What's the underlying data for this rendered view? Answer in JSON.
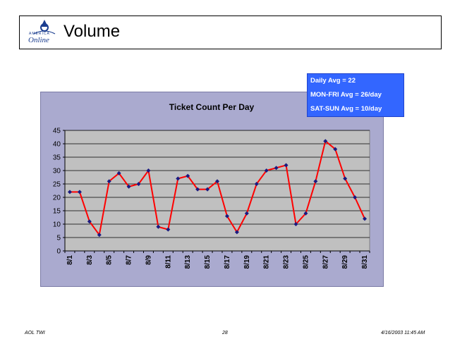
{
  "slide": {
    "title": "Volume",
    "logo_text_top": "AMERICA",
    "logo_text_bottom": "Online"
  },
  "legend": {
    "lines": [
      "Daily Avg = 22",
      "MON-FRI Avg = 26/day",
      "SAT-SUN Avg = 10/day"
    ]
  },
  "footer": {
    "left": "AOL TWI",
    "center": "28",
    "right": "4/16/2003 11:45 AM"
  },
  "colors": {
    "plot_bg": "#c0c0c0",
    "chart_bg": "#aaaacf",
    "line": "#ff0000",
    "marker": "#1a1a80",
    "legend_bg": "#3366ff"
  },
  "chart_data": {
    "type": "line",
    "title": "Ticket Count Per Day",
    "xlabel": "",
    "ylabel": "",
    "ylim": [
      0,
      45
    ],
    "y_ticks": [
      0,
      5,
      10,
      15,
      20,
      25,
      30,
      35,
      40,
      45
    ],
    "x": [
      "8/1",
      "8/2",
      "8/3",
      "8/4",
      "8/5",
      "8/6",
      "8/7",
      "8/8",
      "8/9",
      "8/10",
      "8/11",
      "8/12",
      "8/13",
      "8/14",
      "8/15",
      "8/16",
      "8/17",
      "8/18",
      "8/19",
      "8/20",
      "8/21",
      "8/22",
      "8/23",
      "8/24",
      "8/25",
      "8/26",
      "8/27",
      "8/28",
      "8/29",
      "8/30",
      "8/31"
    ],
    "x_tick_labels": [
      "8/1",
      "8/3",
      "8/5",
      "8/7",
      "8/9",
      "8/11",
      "8/13",
      "8/15",
      "8/17",
      "8/19",
      "8/21",
      "8/23",
      "8/25",
      "8/27",
      "8/29",
      "8/31"
    ],
    "values": [
      22,
      22,
      11,
      6,
      26,
      29,
      24,
      25,
      30,
      9,
      8,
      27,
      28,
      23,
      23,
      26,
      13,
      7,
      14,
      25,
      30,
      31,
      32,
      10,
      14,
      26,
      41,
      38,
      27,
      20,
      12
    ],
    "grid": true,
    "legend": "none"
  }
}
